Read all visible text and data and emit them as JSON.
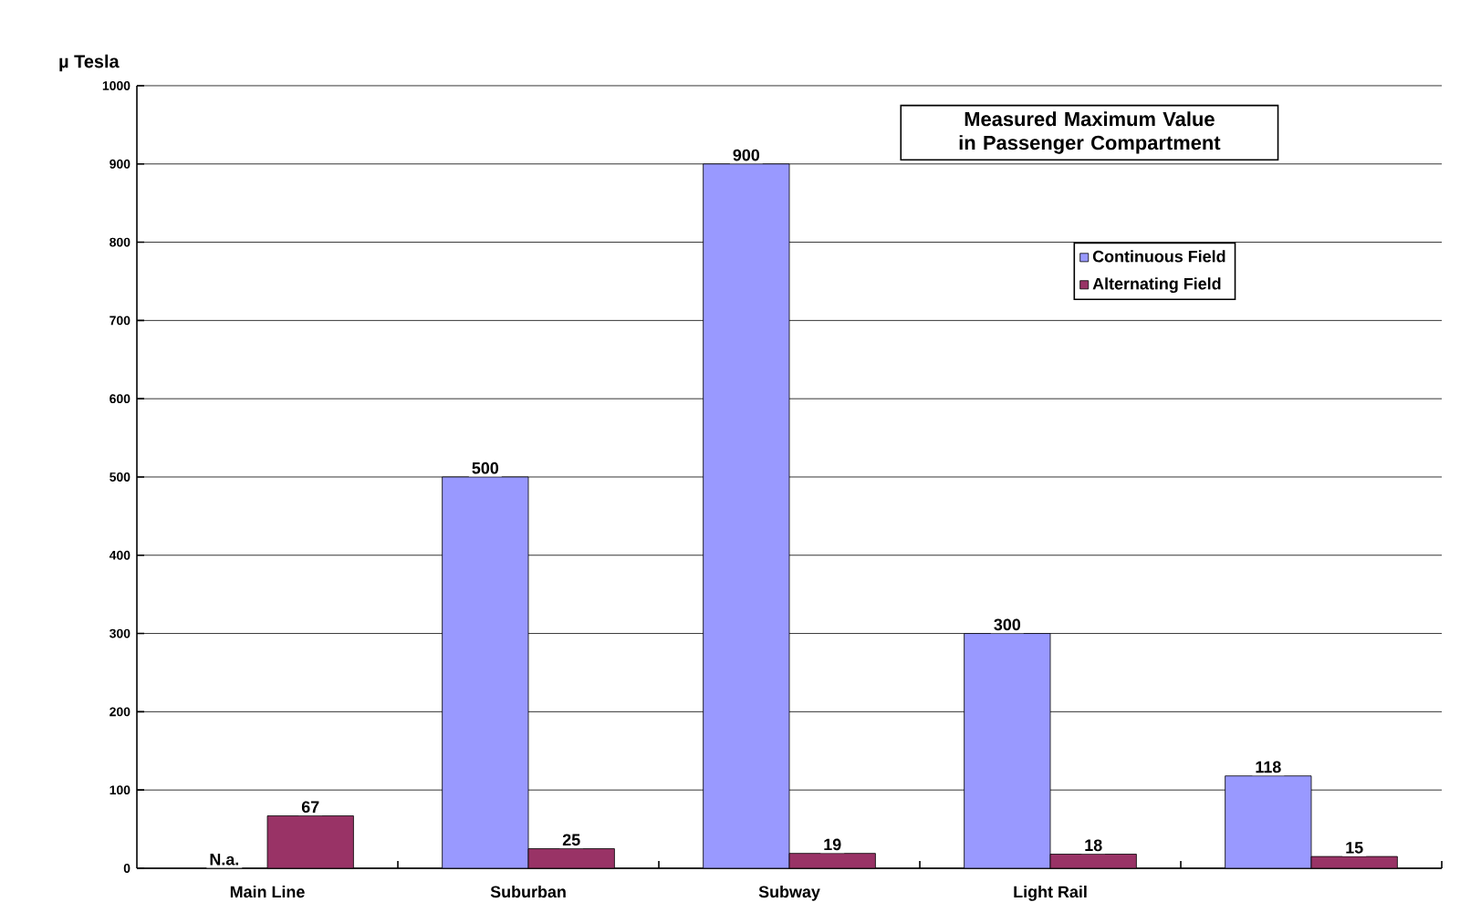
{
  "chart_data": {
    "type": "bar",
    "title": "Measured Maximum Value in Passenger Compartment",
    "ylabel": "µ Tesla",
    "categories": [
      "Main Line",
      "Suburban",
      "Subway",
      "Light Rail",
      null
    ],
    "series": [
      {
        "name": "Continuous Field",
        "color": "#9999ff",
        "values": [
          null,
          500,
          900,
          300,
          118
        ],
        "value_labels": [
          "N.a.",
          "500",
          "900",
          "300",
          "118"
        ]
      },
      {
        "name": "Alternating Field",
        "color": "#993366",
        "values": [
          67,
          25,
          19,
          18,
          15
        ],
        "value_labels": [
          "67",
          "25",
          "19",
          "18",
          "15"
        ]
      }
    ],
    "ylim": [
      0,
      1000
    ],
    "yticks": [
      0,
      100,
      200,
      300,
      400,
      500,
      600,
      700,
      800,
      900,
      1000
    ],
    "grid": "y",
    "legend": "top right"
  }
}
